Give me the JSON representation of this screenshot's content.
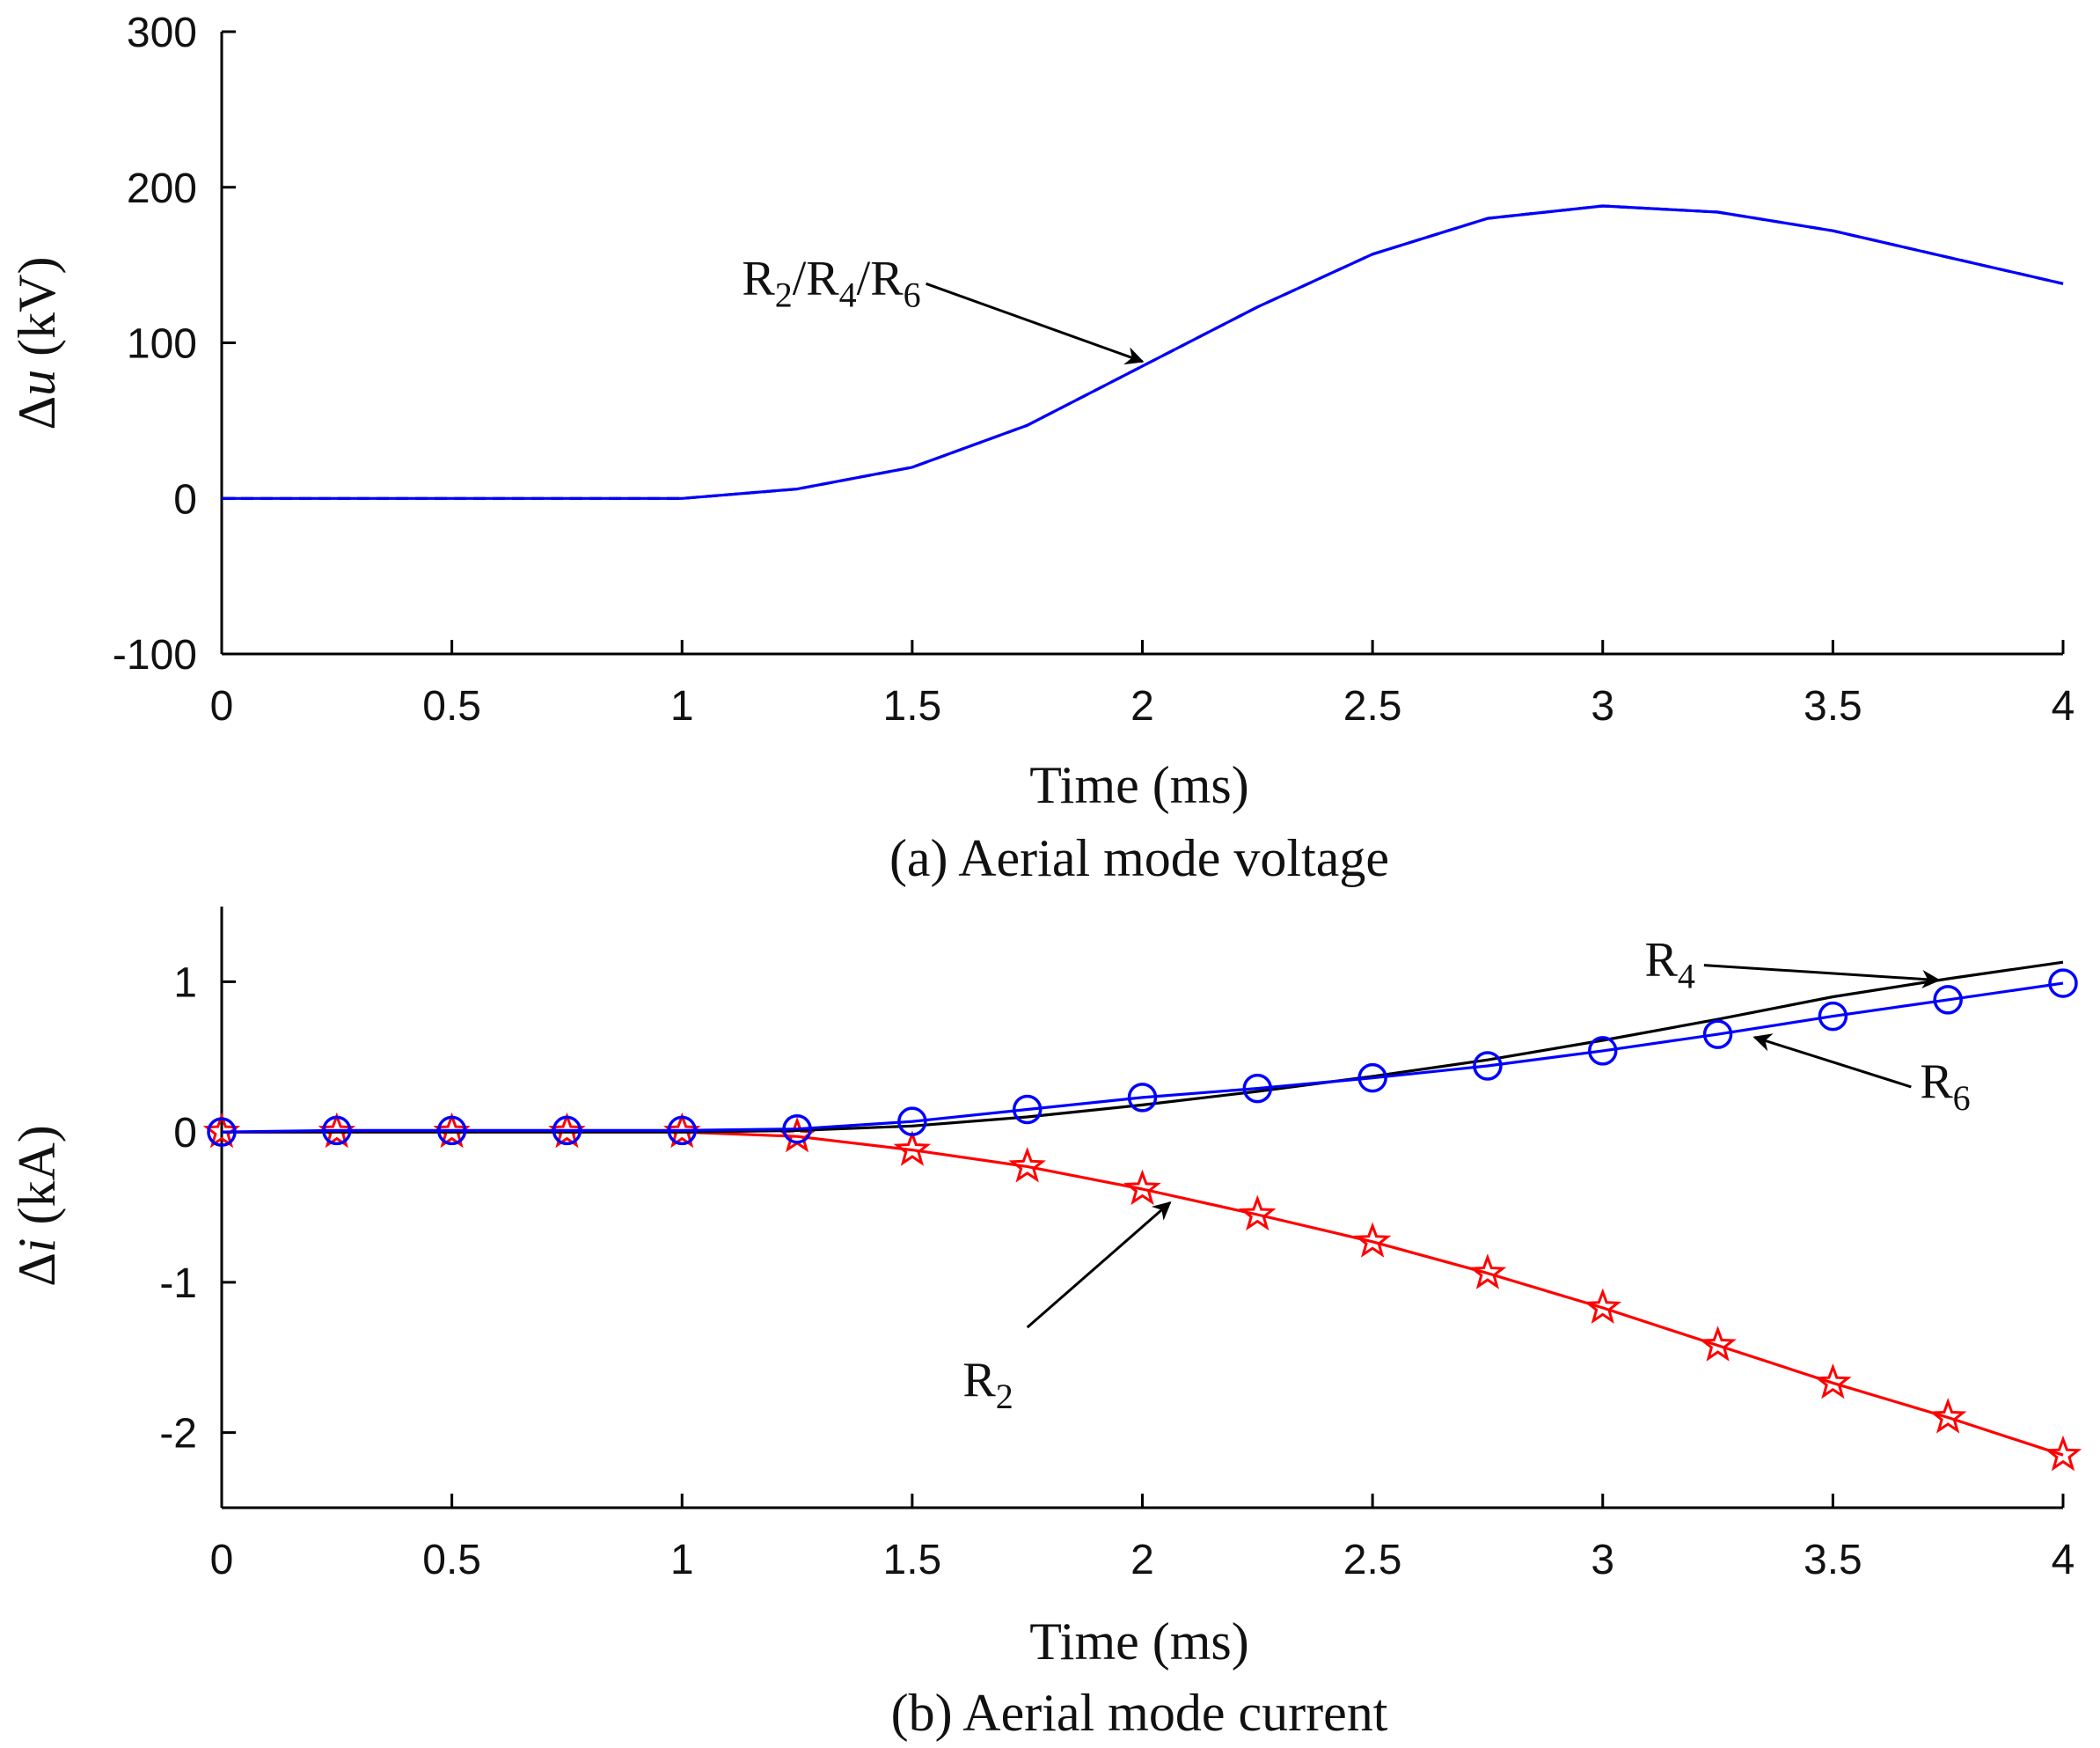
{
  "chart_data": [
    {
      "type": "line",
      "id": "a",
      "caption": "(a) Aerial mode voltage",
      "xlabel": "Time (ms)",
      "ylabel_symbol": "Δ",
      "ylabel_var": "u",
      "ylabel_unit": " (kV)",
      "xlim": [
        0,
        4
      ],
      "ylim": [
        -100,
        300
      ],
      "xticks": [
        0,
        0.5,
        1,
        1.5,
        2,
        2.5,
        3,
        3.5,
        4
      ],
      "xtick_labels": [
        "0",
        "0.5",
        "1",
        "1.5",
        "2",
        "2.5",
        "3",
        "3.5",
        "4"
      ],
      "yticks": [
        -100,
        0,
        100,
        200,
        300
      ],
      "ytick_labels": [
        "-100",
        "0",
        "100",
        "200",
        "300"
      ],
      "x": [
        0,
        0.25,
        0.5,
        0.75,
        1,
        1.25,
        1.5,
        1.75,
        2,
        2.25,
        2.5,
        2.75,
        3,
        3.25,
        3.5,
        3.75,
        4
      ],
      "series": [
        {
          "name": "R4",
          "color": "#000000",
          "dash": true,
          "marker": "none",
          "values": [
            0,
            0,
            0,
            0,
            0,
            6,
            20,
            47,
            85,
            123,
            157,
            180,
            188,
            184,
            172,
            155,
            138
          ]
        },
        {
          "name": "R6",
          "color": "#0000ff",
          "dash": false,
          "marker": "none",
          "values": [
            0,
            0,
            0,
            0,
            0,
            6,
            20,
            47,
            85,
            123,
            157,
            180,
            188,
            184,
            172,
            155,
            138
          ]
        }
      ],
      "annotations": [
        {
          "id": "r246",
          "parts": [
            [
              "R",
              ""
            ],
            [
              "2",
              "sub"
            ],
            [
              "/R",
              ""
            ],
            [
              "4",
              "sub"
            ],
            [
              "/R",
              ""
            ],
            [
              "6",
              "sub"
            ]
          ],
          "tail": [
            1.53,
            138
          ],
          "head": [
            2.0,
            88
          ]
        }
      ]
    },
    {
      "type": "line",
      "id": "b",
      "caption": "(b) Aerial mode current",
      "xlabel": "Time (ms)",
      "ylabel_symbol": "Δ",
      "ylabel_var": "i",
      "ylabel_unit": " (kA)",
      "xlim": [
        0,
        4
      ],
      "ylim": [
        -2.5,
        1.5
      ],
      "xticks": [
        0,
        0.5,
        1,
        1.5,
        2,
        2.5,
        3,
        3.5,
        4
      ],
      "xtick_labels": [
        "0",
        "0.5",
        "1",
        "1.5",
        "2",
        "2.5",
        "3",
        "3.5",
        "4"
      ],
      "yticks": [
        -2,
        -1,
        0,
        1
      ],
      "ytick_labels": [
        "-2",
        "-1",
        "0",
        "1"
      ],
      "x": [
        0,
        0.25,
        0.5,
        0.75,
        1,
        1.25,
        1.5,
        1.75,
        2,
        2.25,
        2.5,
        2.75,
        3,
        3.25,
        3.5,
        3.75,
        4
      ],
      "series": [
        {
          "name": "R2",
          "color": "#ff0000",
          "dash": false,
          "marker": "star",
          "values": [
            0,
            0,
            0,
            0,
            0,
            -0.03,
            -0.12,
            -0.23,
            -0.38,
            -0.55,
            -0.73,
            -0.94,
            -1.17,
            -1.42,
            -1.67,
            -1.9,
            -2.15
          ]
        },
        {
          "name": "R4",
          "color": "#000000",
          "dash": false,
          "marker": "none",
          "values": [
            0,
            0,
            0,
            0,
            0,
            0.01,
            0.04,
            0.1,
            0.18,
            0.27,
            0.37,
            0.48,
            0.61,
            0.75,
            0.9,
            1.02,
            1.13
          ]
        },
        {
          "name": "R6",
          "color": "#0000ff",
          "dash": false,
          "marker": "circle",
          "values": [
            0,
            0.01,
            0.01,
            0.01,
            0.01,
            0.02,
            0.07,
            0.15,
            0.23,
            0.29,
            0.36,
            0.44,
            0.54,
            0.65,
            0.77,
            0.88,
            0.99
          ]
        }
      ],
      "annotations": [
        {
          "id": "r4",
          "parts": [
            [
              "R",
              ""
            ],
            [
              "4",
              "sub"
            ]
          ],
          "tail": [
            3.22,
            1.11
          ],
          "head": [
            3.73,
            1.01
          ]
        },
        {
          "id": "r6",
          "parts": [
            [
              "R",
              ""
            ],
            [
              "6",
              "sub"
            ]
          ],
          "tail": [
            3.67,
            0.3
          ],
          "head": [
            3.33,
            0.63
          ]
        },
        {
          "id": "r2",
          "parts": [
            [
              "R",
              ""
            ],
            [
              "2",
              "sub"
            ]
          ],
          "tail": [
            1.75,
            -1.3
          ],
          "head": [
            2.06,
            -0.47
          ]
        }
      ]
    }
  ]
}
